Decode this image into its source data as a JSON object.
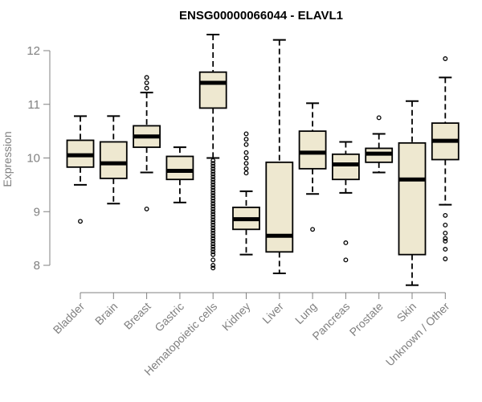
{
  "chart_data": {
    "type": "boxplot",
    "title": "ENSG00000066044 - ELAVL1",
    "xlabel": "",
    "ylabel": "Expression",
    "ylim": [
      7.7,
      12.4
    ],
    "yticks": [
      8,
      9,
      10,
      11,
      12
    ],
    "grid": false,
    "legend": "none",
    "colors": {
      "box_fill": "#EEE8D0",
      "outline": "#000000",
      "median": "#000000",
      "axis": "#808080",
      "text": "#808080",
      "title": "#000000"
    },
    "categories": [
      "Bladder",
      "Brain",
      "Breast",
      "Gastric",
      "Hematopoietic cells",
      "Kidney",
      "Liver",
      "Lung",
      "Pancreas",
      "Prostate",
      "Skin",
      "Unknown / Other"
    ],
    "boxes": [
      {
        "name": "Bladder",
        "whisker_low": 9.5,
        "q1": 9.83,
        "median": 10.05,
        "q3": 10.33,
        "whisker_high": 10.78,
        "outliers": [
          8.82
        ]
      },
      {
        "name": "Brain",
        "whisker_low": 9.15,
        "q1": 9.62,
        "median": 9.9,
        "q3": 10.3,
        "whisker_high": 10.78,
        "outliers": []
      },
      {
        "name": "Breast",
        "whisker_low": 9.73,
        "q1": 10.2,
        "median": 10.4,
        "q3": 10.6,
        "whisker_high": 11.22,
        "outliers": [
          9.05,
          11.3,
          11.4,
          11.5
        ]
      },
      {
        "name": "Gastric",
        "whisker_low": 9.17,
        "q1": 9.6,
        "median": 9.76,
        "q3": 10.03,
        "whisker_high": 10.2,
        "outliers": []
      },
      {
        "name": "Hematopoietic cells",
        "whisker_low": 10.0,
        "q1": 10.93,
        "median": 11.4,
        "q3": 11.6,
        "whisker_high": 12.3,
        "outliers": [
          9.95,
          9.9,
          9.85,
          9.8,
          9.75,
          9.7,
          9.65,
          9.6,
          9.55,
          9.5,
          9.45,
          9.4,
          9.35,
          9.3,
          9.25,
          9.2,
          9.15,
          9.1,
          9.05,
          9.0,
          8.95,
          8.9,
          8.85,
          8.8,
          8.75,
          8.7,
          8.65,
          8.6,
          8.55,
          8.5,
          8.45,
          8.4,
          8.35,
          8.3,
          8.25,
          8.2,
          8.1,
          8.0,
          7.95
        ]
      },
      {
        "name": "Kidney",
        "whisker_low": 8.2,
        "q1": 8.67,
        "median": 8.86,
        "q3": 9.08,
        "whisker_high": 9.38,
        "outliers": [
          9.72,
          9.8,
          9.9,
          10.0,
          10.1,
          10.25,
          10.35,
          10.45
        ]
      },
      {
        "name": "Liver",
        "whisker_low": 7.85,
        "q1": 8.25,
        "median": 8.55,
        "q3": 9.92,
        "whisker_high": 12.2,
        "outliers": []
      },
      {
        "name": "Lung",
        "whisker_low": 9.33,
        "q1": 9.8,
        "median": 10.1,
        "q3": 10.5,
        "whisker_high": 11.02,
        "outliers": [
          8.67
        ]
      },
      {
        "name": "Pancreas",
        "whisker_low": 9.35,
        "q1": 9.6,
        "median": 9.88,
        "q3": 10.07,
        "whisker_high": 10.3,
        "outliers": [
          8.42,
          8.1
        ]
      },
      {
        "name": "Prostate",
        "whisker_low": 9.73,
        "q1": 9.92,
        "median": 10.08,
        "q3": 10.18,
        "whisker_high": 10.45,
        "outliers": [
          10.75
        ]
      },
      {
        "name": "Skin",
        "whisker_low": 7.63,
        "q1": 8.2,
        "median": 9.6,
        "q3": 10.28,
        "whisker_high": 11.06,
        "outliers": []
      },
      {
        "name": "Unknown / Other",
        "whisker_low": 9.13,
        "q1": 9.97,
        "median": 10.32,
        "q3": 10.65,
        "whisker_high": 11.5,
        "outliers": [
          11.85,
          8.93,
          8.75,
          8.6,
          8.45,
          8.3,
          8.12,
          8.5
        ]
      }
    ]
  }
}
